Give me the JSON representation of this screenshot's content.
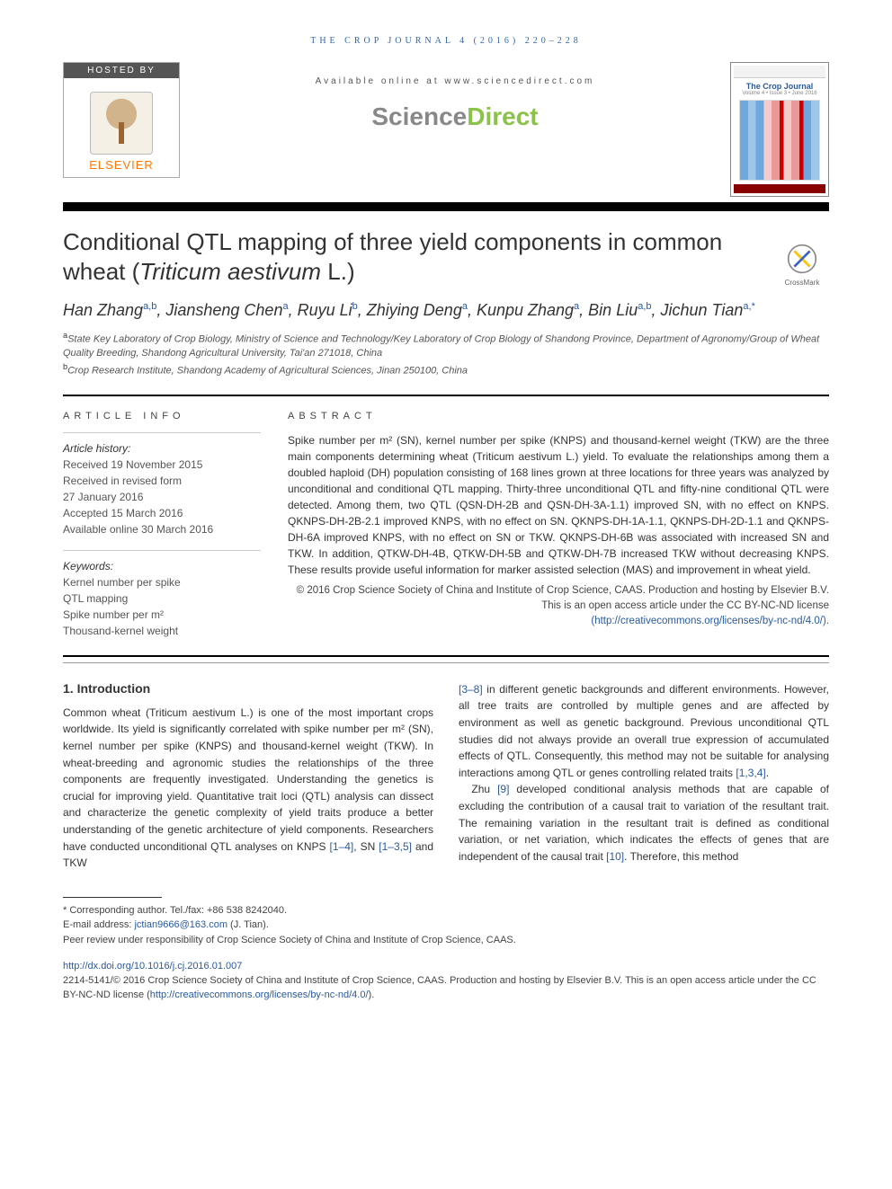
{
  "running_header": "THE CROP JOURNAL 4 (2016) 220–228",
  "banner": {
    "hosted_by": "HOSTED BY",
    "elsevier": "ELSEVIER",
    "available": "Available online at www.sciencedirect.com",
    "sd_gray": "Science",
    "sd_green": "Direct",
    "cover_title": "The Crop Journal",
    "cover_issue": "Volume 4 • Issue 3 • June 2016"
  },
  "crossmark_label": "CrossMark",
  "title_a": "Conditional QTL mapping of three yield components in common wheat (",
  "title_species": "Triticum aestivum",
  "title_b": " L.)",
  "authors_html": "Han Zhang<sup>a,b</sup>, Jiansheng Chen<sup>a</sup>, Ruyu Li<sup>b</sup>, Zhiying Deng<sup>a</sup>, Kunpu Zhang<sup>a</sup>, Bin Liu<sup>a,b</sup>, Jichun Tian<sup>a,*</sup>",
  "affiliations": {
    "a": "State Key Laboratory of Crop Biology, Ministry of Science and Technology/Key Laboratory of Crop Biology of Shandong Province, Department of Agronomy/Group of Wheat Quality Breeding, Shandong Agricultural University, Tai'an 271018, China",
    "b": "Crop Research Institute, Shandong Academy of Agricultural Sciences, Jinan 250100, China"
  },
  "article_info_caps": "ARTICLE INFO",
  "abstract_caps": "ABSTRACT",
  "history_label": "Article history:",
  "history": [
    "Received 19 November 2015",
    "Received in revised form",
    "27 January 2016",
    "Accepted 15 March 2016",
    "Available online 30 March 2016"
  ],
  "keywords_label": "Keywords:",
  "keywords": [
    "Kernel number per spike",
    "QTL mapping",
    "Spike number per m²",
    "Thousand-kernel weight"
  ],
  "abstract": "Spike number per m² (SN), kernel number per spike (KNPS) and thousand-kernel weight (TKW) are the three main components determining wheat (Triticum aestivum L.) yield. To evaluate the relationships among them a doubled haploid (DH) population consisting of 168 lines grown at three locations for three years was analyzed by unconditional and conditional QTL mapping. Thirty-three unconditional QTL and fifty-nine conditional QTL were detected. Among them, two QTL (QSN-DH-2B and QSN-DH-3A-1.1) improved SN, with no effect on KNPS. QKNPS-DH-2B-2.1 improved KNPS, with no effect on SN. QKNPS-DH-1A-1.1, QKNPS-DH-2D-1.1 and QKNPS-DH-6A improved KNPS, with no effect on SN or TKW. QKNPS-DH-6B was associated with increased SN and TKW. In addition, QTKW-DH-4B, QTKW-DH-5B and QTKW-DH-7B increased TKW without decreasing KNPS. These results provide useful information for marker assisted selection (MAS) and improvement in wheat yield.",
  "copyright": "© 2016 Crop Science Society of China and Institute of Crop Science, CAAS. Production and hosting by Elsevier B.V. This is an open access article under the CC BY-NC-ND license",
  "license_url": "(http://creativecommons.org/licenses/by-nc-nd/4.0/)",
  "intro_heading": "1. Introduction",
  "intro_left": "Common wheat (Triticum aestivum L.) is one of the most important crops worldwide. Its yield is significantly correlated with spike number per m² (SN), kernel number per spike (KNPS) and thousand-kernel weight (TKW). In wheat-breeding and agronomic studies the relationships of the three components are frequently investigated. Understanding the genetics is crucial for improving yield. Quantitative trait loci (QTL) analysis can dissect and characterize the genetic complexity of yield traits produce a better understanding of the genetic architecture of yield components. Researchers have conducted unconditional QTL analyses on KNPS ",
  "cites": {
    "c1": "[1–4]",
    "c2": "[1–3,5]",
    "c3": "[3–8]",
    "c4": "[1,3,4]",
    "c5": "[9]",
    "c6": "[10]"
  },
  "intro_left_tail": ", SN ",
  "intro_left_tail2": " and TKW",
  "intro_right_p1a": " in different genetic backgrounds and different environments. However, all tree traits are controlled by multiple genes and are affected by environment as well as genetic background. Previous unconditional QTL studies did not always provide an overall true expression of accumulated effects of QTL. Consequently, this method may not be suitable for analysing interactions among QTL or genes controlling related traits ",
  "intro_right_p1b": ".",
  "intro_right_p2a": "Zhu ",
  "intro_right_p2b": " developed conditional analysis methods that are capable of excluding the contribution of a causal trait to variation of the resultant trait. The remaining variation in the resultant trait is defined as conditional variation, or net variation, which indicates the effects of genes that are independent of the causal trait ",
  "intro_right_p2c": ". Therefore, this method",
  "footnotes": {
    "corresponding": "* Corresponding author. Tel./fax: +86 538 8242040.",
    "email_label": "E-mail address: ",
    "email": "jctian9666@163.com",
    "email_tail": " (J. Tian).",
    "peer": "Peer review under responsibility of Crop Science Society of China and Institute of Crop Science, CAAS."
  },
  "doi": "http://dx.doi.org/10.1016/j.cj.2016.01.007",
  "bottom_copy": "2214-5141/© 2016 Crop Science Society of China and Institute of Crop Science, CAAS. Production and hosting by Elsevier B.V. This is an open access article under the CC BY-NC-ND license (",
  "bottom_url": "http://creativecommons.org/licenses/by-nc-nd/4.0/",
  "bottom_tail": ")."
}
